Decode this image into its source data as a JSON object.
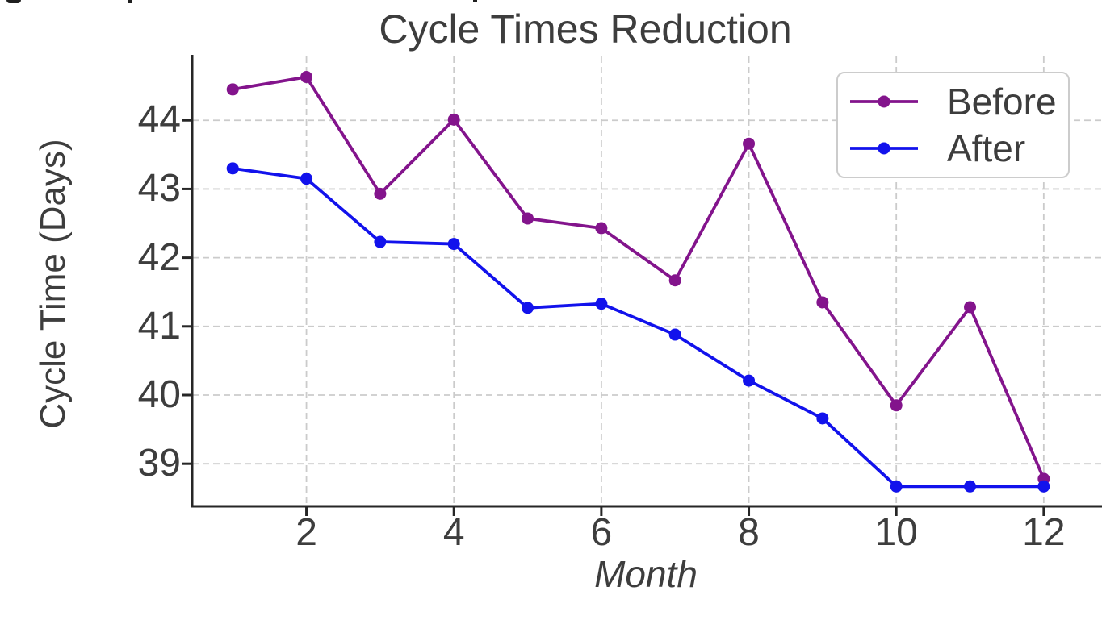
{
  "chart_data": {
    "type": "line",
    "title": "Cycle Times Reduction",
    "xlabel": "Month",
    "ylabel": "Cycle Time (Days)",
    "x": [
      1,
      2,
      3,
      4,
      5,
      6,
      7,
      8,
      9,
      10,
      11,
      12
    ],
    "series": [
      {
        "name": "Before",
        "color": "#83148c",
        "values": [
          44.45,
          44.63,
          42.93,
          44.01,
          42.57,
          42.43,
          41.67,
          43.66,
          41.35,
          39.85,
          41.28,
          38.78
        ]
      },
      {
        "name": "After",
        "color": "#1212ec",
        "values": [
          43.3,
          43.15,
          42.23,
          42.2,
          41.27,
          41.33,
          40.88,
          40.21,
          39.66,
          38.67,
          38.67,
          38.67
        ]
      }
    ],
    "x_ticks": [
      2,
      4,
      6,
      8,
      10,
      12
    ],
    "y_ticks": [
      39,
      40,
      41,
      42,
      43,
      44
    ],
    "xlim": [
      0.45,
      12.79
    ],
    "ylim": [
      38.38,
      44.93
    ],
    "grid": true,
    "legend_position": "upper right",
    "marker": "circle",
    "grid_color": "#cbcbcb",
    "spine_color": "#262626",
    "text_color": "#3d3d3d",
    "background_color": "#ffffff"
  }
}
